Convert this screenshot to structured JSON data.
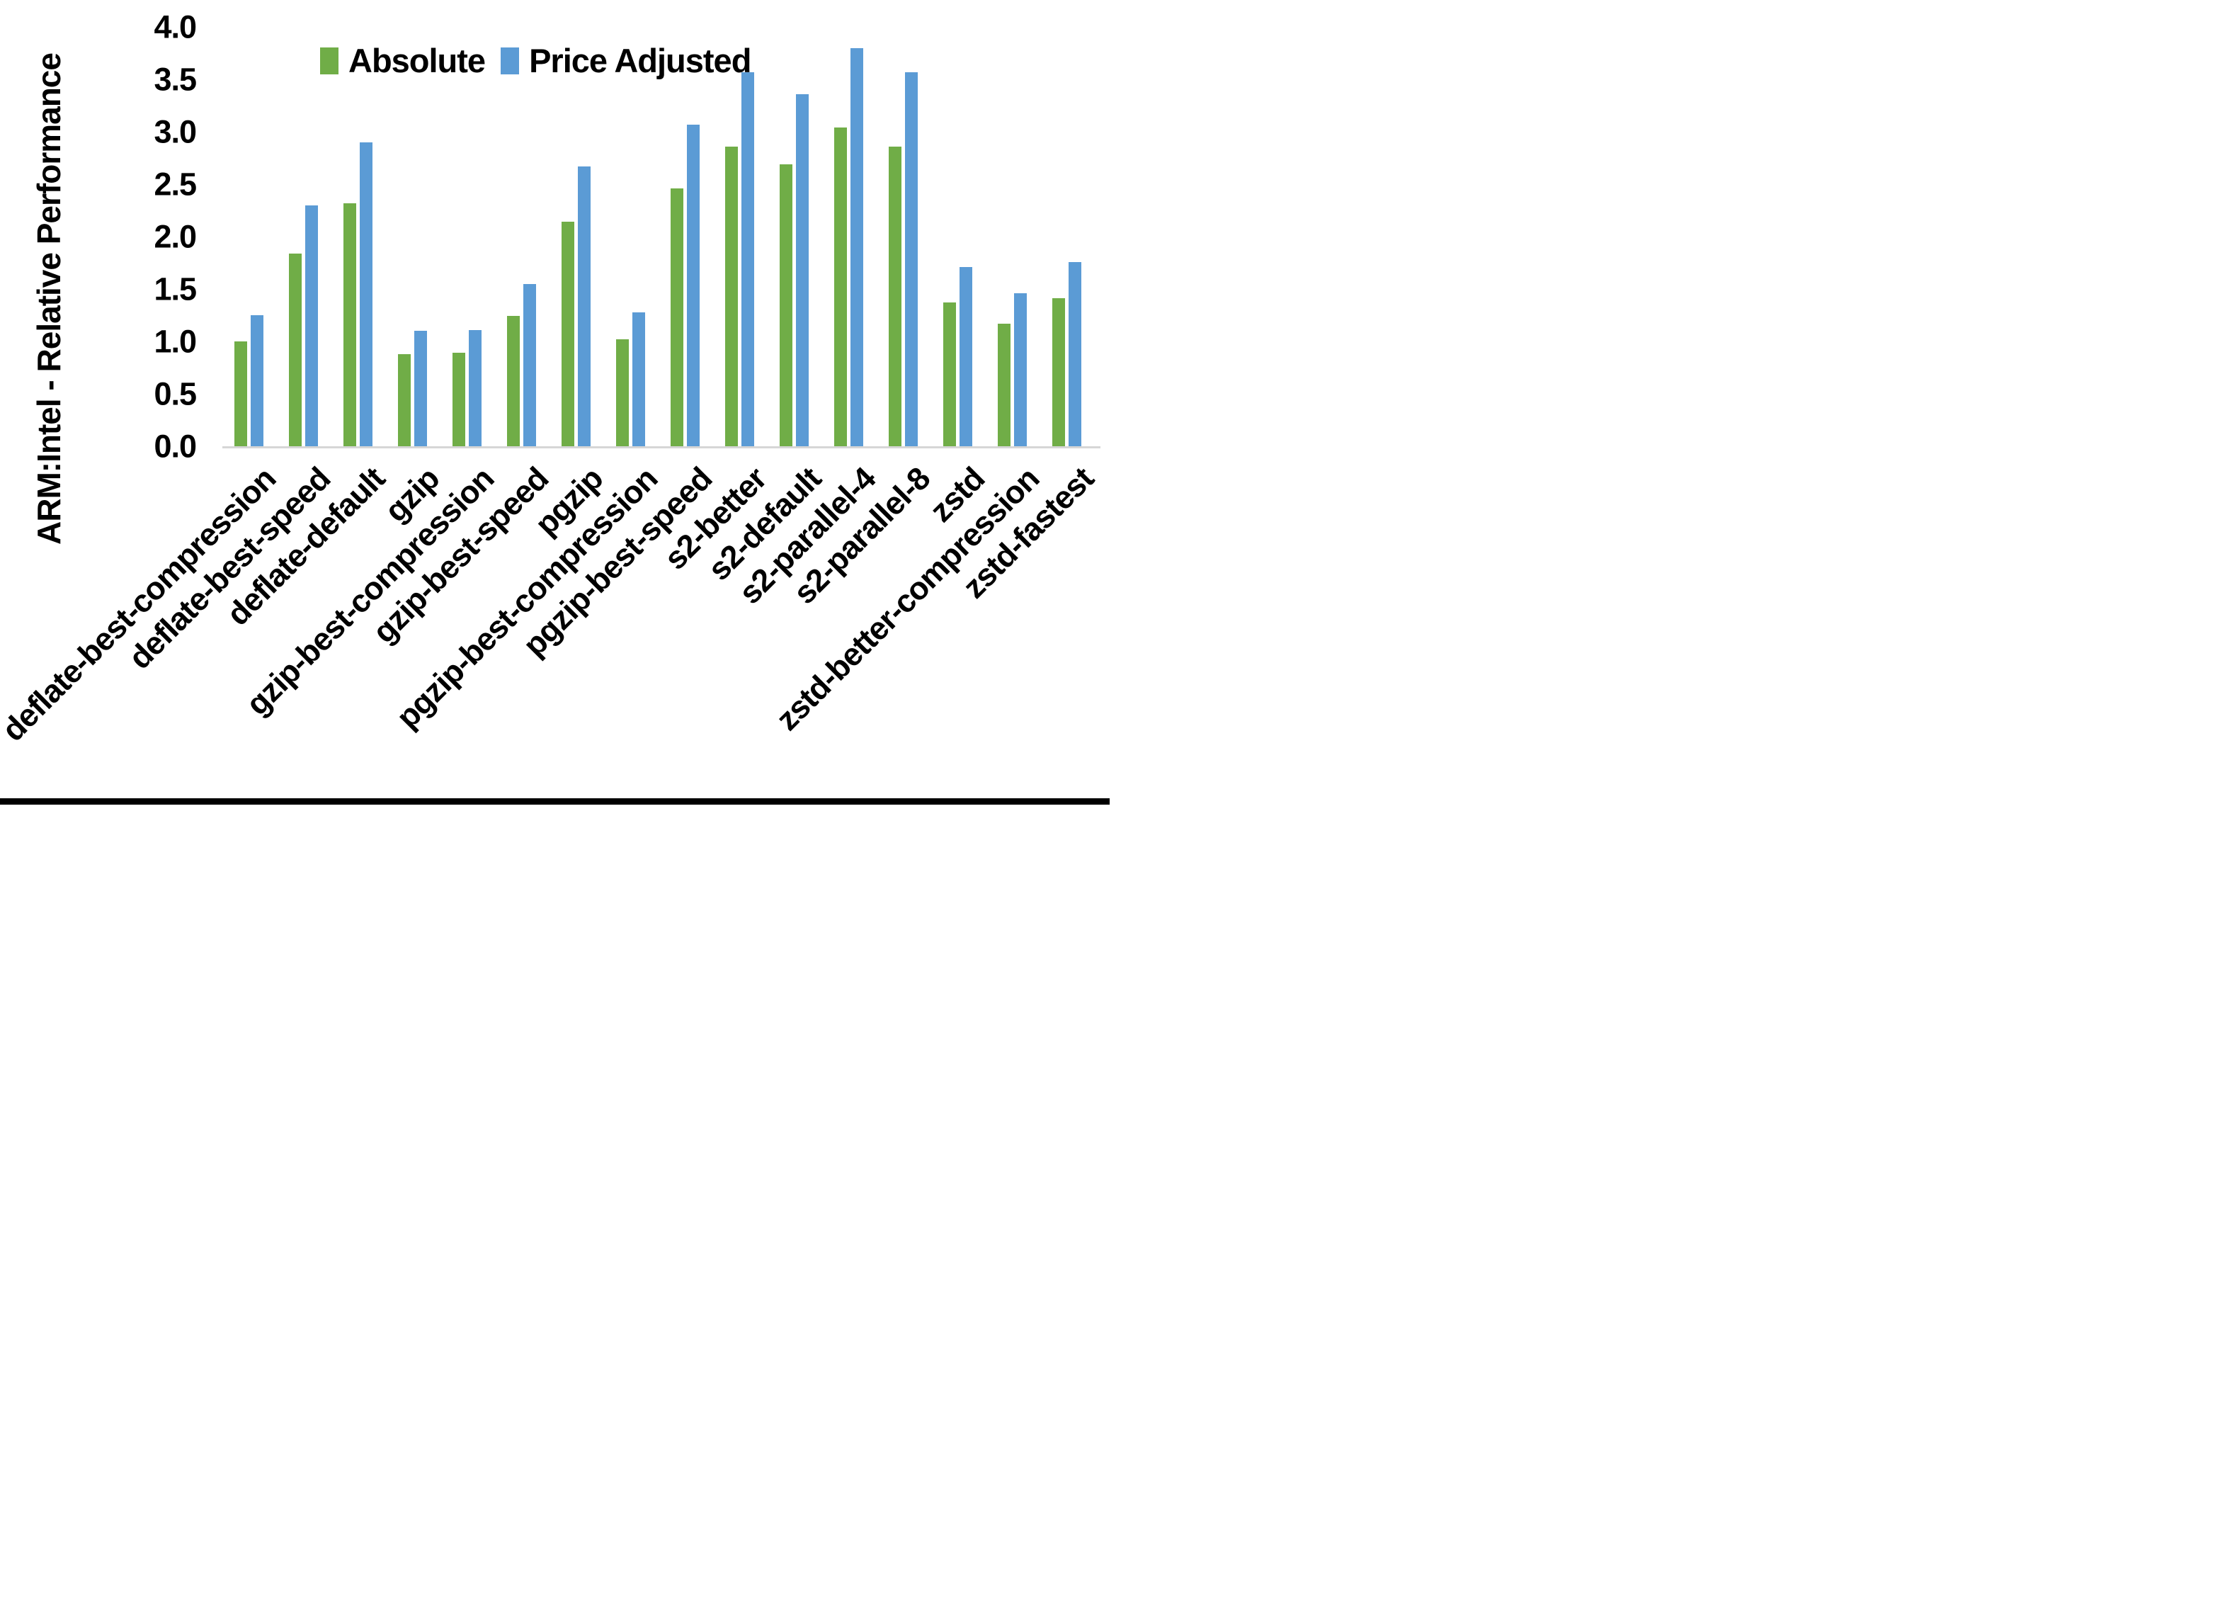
{
  "chart_data": {
    "type": "bar",
    "title": "",
    "ylabel": "ARM:Intel - Relative Performance",
    "xlabel": "",
    "ylim": [
      0.0,
      4.0
    ],
    "ytick_step": 0.5,
    "yticks": [
      "4.0",
      "3.5",
      "3.0",
      "2.5",
      "2.0",
      "1.5",
      "1.0",
      "0.5",
      "0.0"
    ],
    "grid": false,
    "legend_position": "top-center",
    "categories": [
      "deflate-best-compression",
      "deflate-best-speed",
      "deflate-default",
      "gzip",
      "gzip-best-compression",
      "gzip-best-speed",
      "pgzip",
      "pgzip-best-compression",
      "pgzip-best-speed",
      "s2-better",
      "s2-default",
      "s2-parallel-4",
      "s2-parallel-8",
      "zstd",
      "zstd-better-compression",
      "zstd-fastest"
    ],
    "series": [
      {
        "name": "Absolute",
        "color": "#70AD47",
        "values": [
          1.0,
          1.84,
          2.32,
          0.88,
          0.89,
          1.24,
          2.14,
          1.02,
          2.46,
          2.86,
          2.69,
          3.04,
          2.86,
          1.37,
          1.17,
          1.41
        ]
      },
      {
        "name": "Price Adjusted",
        "color": "#5B9BD5",
        "values": [
          1.25,
          2.3,
          2.9,
          1.1,
          1.11,
          1.55,
          2.67,
          1.28,
          3.07,
          3.57,
          3.36,
          3.8,
          3.57,
          1.71,
          1.46,
          1.76
        ]
      }
    ],
    "axis_color": "#d6d6d6",
    "text_color": "#000000"
  }
}
